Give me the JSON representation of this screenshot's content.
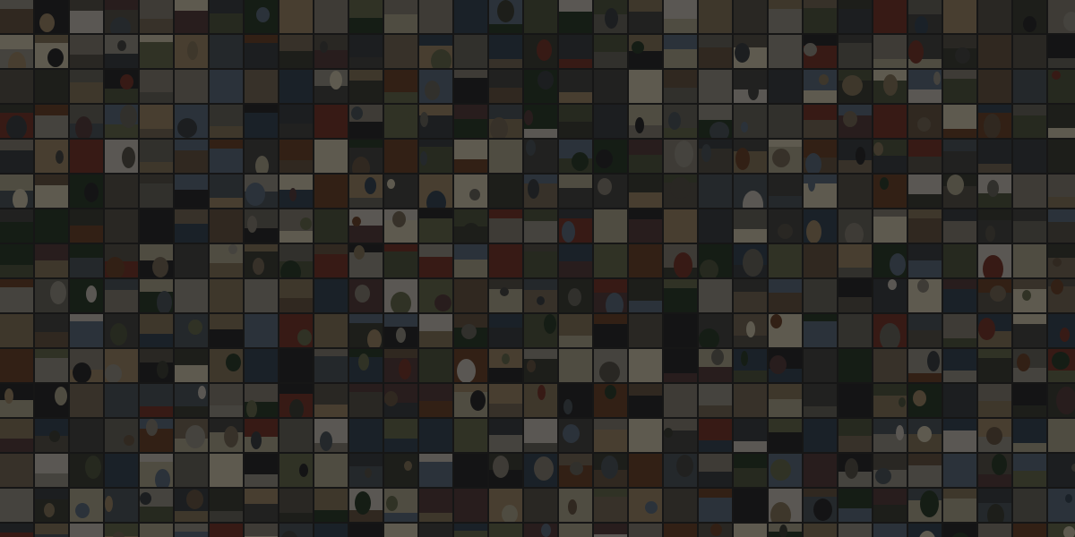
{
  "mosaic": {
    "palette": [
      "#4a4a48",
      "#5c574f",
      "#6e6a63",
      "#3e4448",
      "#505a60",
      "#6a5a48",
      "#7a6e5c",
      "#40443a",
      "#555c45",
      "#6b7052",
      "#8a8478",
      "#9a958a",
      "#2e2e30",
      "#5a4040",
      "#7a3a30",
      "#a08a6a",
      "#c8c2b8",
      "#3a4a5a",
      "#607080",
      "#8a7a60",
      "#b0a890",
      "#704830",
      "#304030",
      "#d0c8b0"
    ],
    "overlay_color": "#000000"
  }
}
